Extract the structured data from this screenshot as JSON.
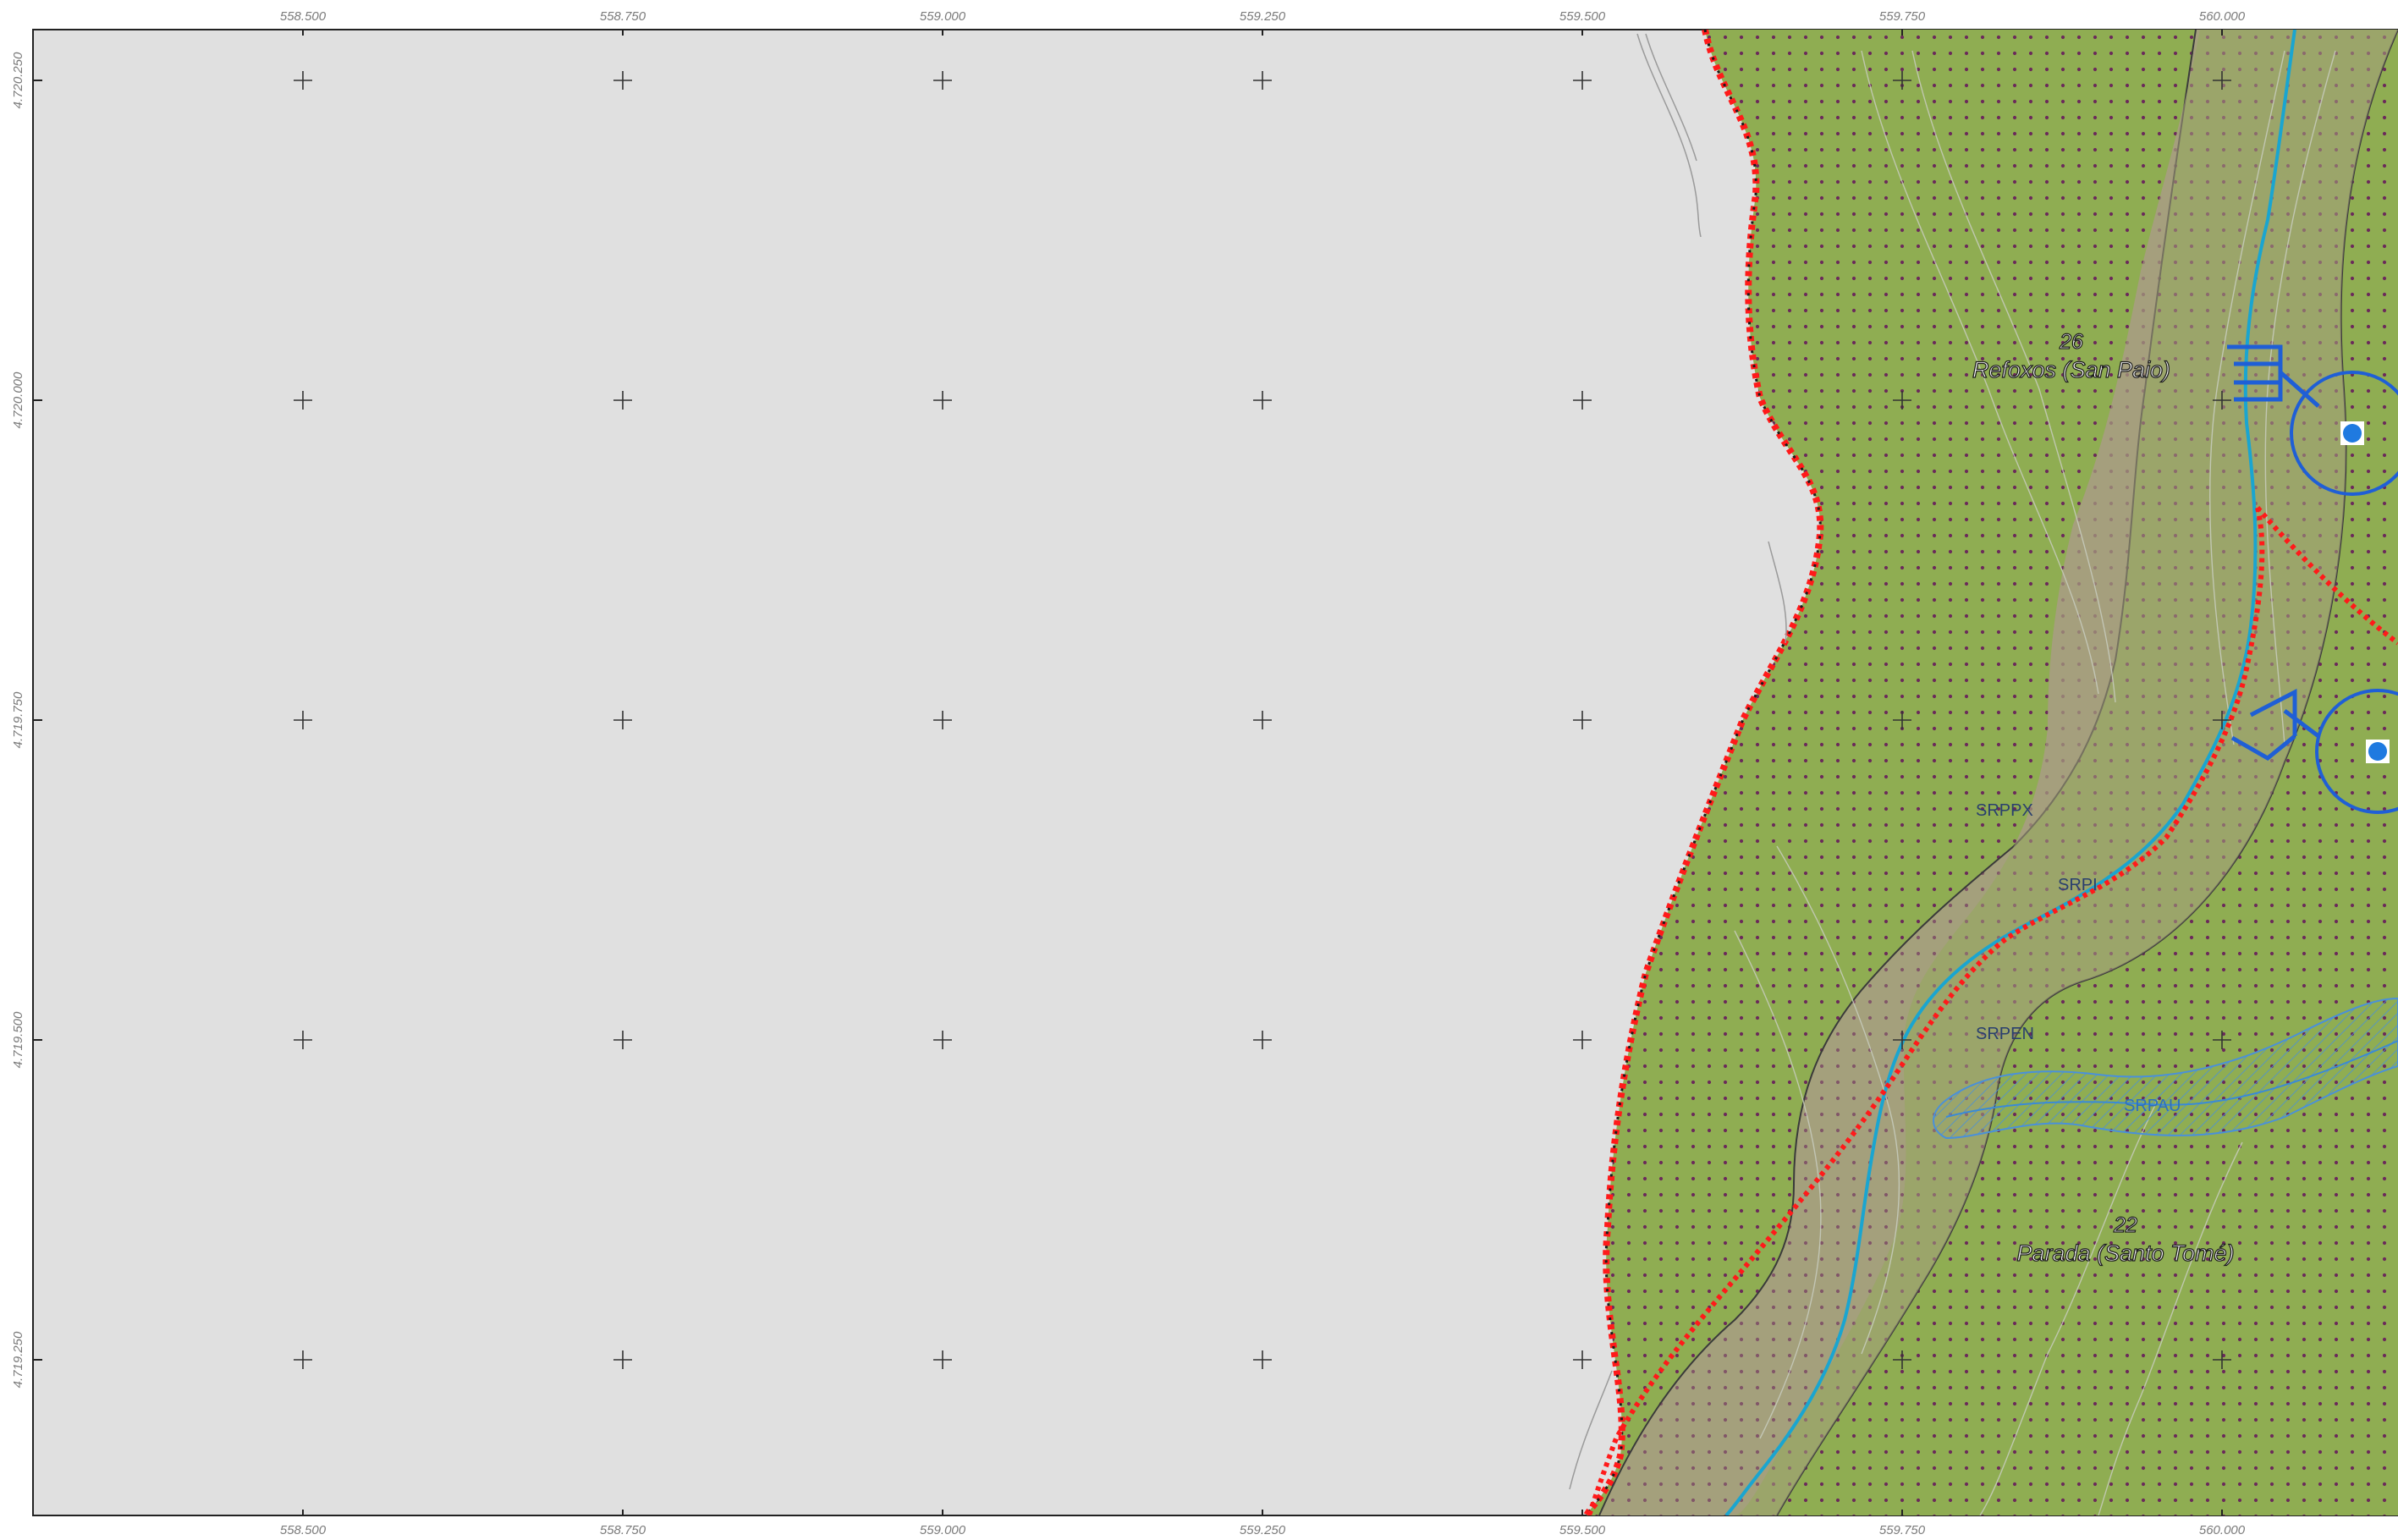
{
  "map": {
    "x_ticks": [
      "558.500",
      "558.750",
      "559.000",
      "559.250",
      "559.500",
      "559.750",
      "560.000"
    ],
    "y_ticks": [
      "4.720.250",
      "4.720.000",
      "4.719.750",
      "4.719.500",
      "4.719.250"
    ],
    "places": [
      {
        "number": "26",
        "name": "Refoxos (San Paio)"
      },
      {
        "number": "22",
        "name": "Parada (Santo Tomé)"
      }
    ],
    "zone_labels": [
      "SRPPX",
      "SRPI",
      "SRPEN",
      "SRPAU"
    ],
    "colors": {
      "outside_area": "#e0e0e0",
      "rustic_land": "#8fad52",
      "dot_pattern": "#6b2a5a",
      "river_corridor": "#a59f7e",
      "river": "#1aa5d0",
      "boundary": "#ff1a1a",
      "infrastructure": "#1f5fd6",
      "hatch_zone": "#4a90d9"
    },
    "icons": [
      "grid-cross-icon",
      "well-circle-icon",
      "tank-square-icon"
    ]
  }
}
